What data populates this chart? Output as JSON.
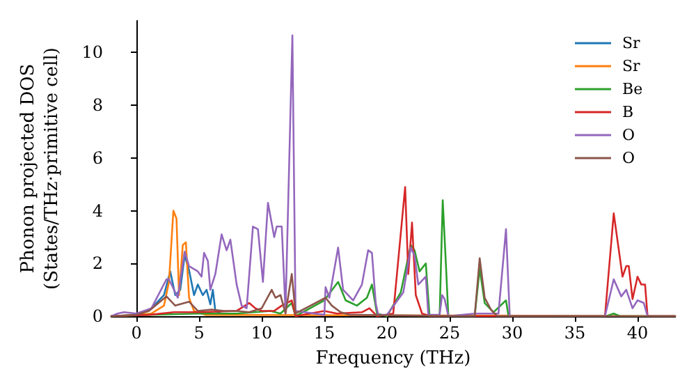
{
  "chart_data": {
    "type": "line",
    "xlabel": "Frequency (THz)",
    "ylabel": "Phonon projected DOS\n(States/THz·primitive cell)",
    "xlim": [
      -2,
      43
    ],
    "ylim": [
      0,
      11.2
    ],
    "xticks": [
      0,
      5,
      10,
      15,
      20,
      25,
      30,
      35,
      40
    ],
    "yticks": [
      0,
      2,
      4,
      6,
      8,
      10
    ],
    "grid": false,
    "legend": "top right",
    "marker": "none",
    "line_style": "solid",
    "series": [
      {
        "name": "Sr",
        "color": "#1f77b4",
        "x": [
          -2,
          0,
          1.2,
          2.2,
          2.7,
          3.1,
          3.5,
          3.85,
          4.2,
          4.6,
          4.9,
          5.3,
          5.6,
          5.9,
          6.1,
          6.3,
          7
        ],
        "values": [
          0,
          0.05,
          0.3,
          0.8,
          1.7,
          0.8,
          1.0,
          2.3,
          1.75,
          0.8,
          1.2,
          0.8,
          1.0,
          0.45,
          1.0,
          0.2,
          0.05
        ]
      },
      {
        "name": "Sr",
        "color": "#ff7f0e",
        "x": [
          -2,
          0,
          1.2,
          2.2,
          2.6,
          2.95,
          3.2,
          3.4,
          3.7,
          3.95,
          4.2,
          4.6,
          5.5,
          43
        ],
        "values": [
          0,
          0.05,
          0.1,
          0.4,
          1.3,
          4.0,
          3.7,
          0.8,
          2.7,
          2.8,
          0.7,
          0.2,
          0.05,
          0
        ]
      },
      {
        "name": "Be",
        "color": "#2ca02c",
        "x": [
          -2,
          1,
          5,
          8,
          10.7,
          11.5,
          12.4,
          12.7,
          15.0,
          16.1,
          16.7,
          17.6,
          18.4,
          18.8,
          19.2,
          20.0,
          21.1,
          21.9,
          22.2,
          22.6,
          23.1,
          23.4,
          24.2,
          24.45,
          24.7,
          24.9,
          27.0,
          27.4,
          27.8,
          28.5,
          29.5,
          29.7,
          37.5,
          38.1,
          38.6,
          43
        ],
        "values": [
          0,
          0.05,
          0.1,
          0.1,
          0.2,
          0.1,
          0.5,
          0,
          0.6,
          1.3,
          0.6,
          0.4,
          0.7,
          1.2,
          0.1,
          0,
          0.9,
          2.7,
          2.5,
          1.7,
          2.0,
          0,
          0,
          4.4,
          2.0,
          0,
          0,
          1.8,
          0.5,
          0.15,
          0.6,
          0,
          0,
          0.1,
          0,
          0
        ]
      },
      {
        "name": "B",
        "color": "#d62728",
        "x": [
          -2,
          1,
          3,
          5,
          8,
          9,
          9.5,
          10,
          11,
          11.6,
          12.4,
          12.7,
          15,
          16,
          18,
          18.6,
          19.2,
          20.5,
          21.45,
          21.7,
          22.0,
          22.3,
          22.8,
          23.5,
          37.4,
          38.1,
          38.8,
          39.1,
          39.3,
          39.6,
          40.0,
          40.3,
          40.6,
          40.8,
          43
        ],
        "values": [
          0,
          0.05,
          0.15,
          0.15,
          0.2,
          0.5,
          0.3,
          0.2,
          0.2,
          0.4,
          0.6,
          0,
          0.2,
          0.1,
          0.15,
          0.3,
          0,
          0.1,
          4.9,
          1.6,
          3.55,
          0.8,
          0.1,
          0,
          0,
          3.9,
          1.5,
          1.9,
          1.9,
          0.65,
          1.5,
          1.2,
          1.2,
          0,
          0
        ]
      },
      {
        "name": "O",
        "color": "#9467bd",
        "x": [
          -2,
          -1.5,
          -1,
          0,
          1.2,
          2.4,
          2.6,
          3.3,
          3.85,
          4.2,
          4.9,
          5.2,
          5.4,
          5.7,
          5.9,
          6.3,
          6.8,
          7.2,
          7.5,
          8.0,
          8.4,
          8.8,
          9.3,
          9.7,
          10.1,
          10.5,
          11.0,
          11.2,
          11.6,
          11.9,
          12.45,
          12.7,
          15.0,
          15.1,
          15.4,
          16.1,
          16.5,
          17.3,
          18.0,
          18.5,
          18.8,
          19.1,
          19.3,
          20.0,
          21.3,
          21.9,
          22.2,
          22.5,
          23.1,
          23.3,
          24.2,
          24.4,
          24.6,
          24.9,
          27,
          28.5,
          28.9,
          29.5,
          29.8,
          37.4,
          38.1,
          38.7,
          39.1,
          39.6,
          40.0,
          40.5,
          40.8,
          43
        ],
        "values": [
          0,
          0.1,
          0.15,
          0.1,
          0.3,
          1.4,
          1.4,
          0.7,
          2.45,
          1.9,
          1.7,
          1.5,
          2.4,
          2.1,
          1.0,
          1.6,
          3.1,
          2.5,
          2.9,
          1.2,
          0.4,
          0.3,
          3.4,
          3.3,
          1.3,
          4.3,
          3.0,
          3.4,
          3.4,
          0.2,
          10.65,
          0.2,
          0.05,
          1.1,
          0.7,
          2.6,
          1.0,
          0.6,
          1.2,
          2.5,
          2.4,
          0.5,
          0.05,
          0.05,
          0.9,
          2.6,
          2.3,
          1.2,
          1.5,
          0.05,
          0.05,
          0.8,
          0.65,
          0,
          0.1,
          0.1,
          0.1,
          3.3,
          0,
          0,
          1.4,
          0.75,
          1.0,
          0.3,
          0.6,
          0.5,
          0,
          0
        ]
      },
      {
        "name": "O",
        "color": "#8c564b",
        "x": [
          -2,
          0,
          1,
          2.4,
          3.1,
          4.2,
          4.9,
          6,
          7,
          8,
          9,
          10,
          10.8,
          11.1,
          11.5,
          11.9,
          12.4,
          12.7,
          15.1,
          15.6,
          16.3,
          17,
          27,
          27.4,
          27.8,
          28.3,
          28.8,
          43
        ],
        "values": [
          0,
          0.05,
          0.2,
          0.75,
          0.4,
          0.55,
          0.2,
          0.25,
          0.2,
          0.2,
          0.15,
          0.3,
          1.0,
          0.7,
          0.8,
          0.1,
          1.6,
          0.1,
          0.7,
          0.4,
          0.15,
          0.05,
          0,
          2.2,
          0.7,
          0.25,
          0,
          0
        ]
      }
    ]
  }
}
